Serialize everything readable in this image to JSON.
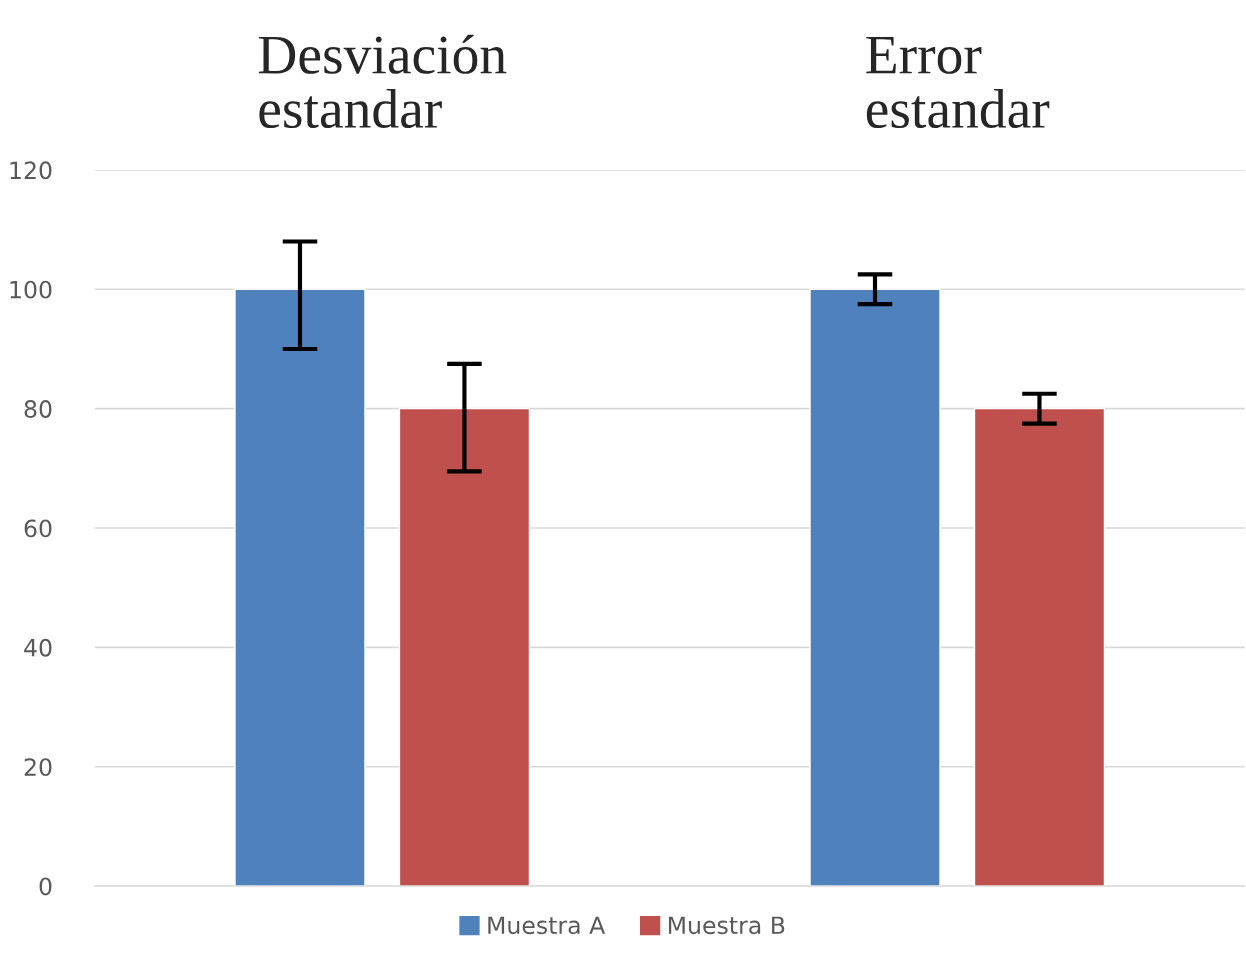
{
  "chart_data": {
    "type": "bar",
    "categories": [
      "Desviación\nestandar",
      "Error\nestandar"
    ],
    "series": [
      {
        "name": "Muestra A",
        "color": "#4f81bd",
        "values": [
          100,
          100
        ],
        "errors": [
          [
            90,
            108
          ],
          [
            97.5,
            102.5
          ]
        ]
      },
      {
        "name": "Muestra B",
        "color": "#c0504d",
        "values": [
          80,
          80
        ],
        "errors": [
          [
            69.5,
            87.5
          ],
          [
            77.5,
            82.5
          ]
        ]
      }
    ],
    "ylim": [
      0,
      120
    ],
    "yticks": [
      0,
      20,
      40,
      60,
      80,
      100,
      120
    ],
    "grid": "y",
    "legend": "bottom"
  }
}
